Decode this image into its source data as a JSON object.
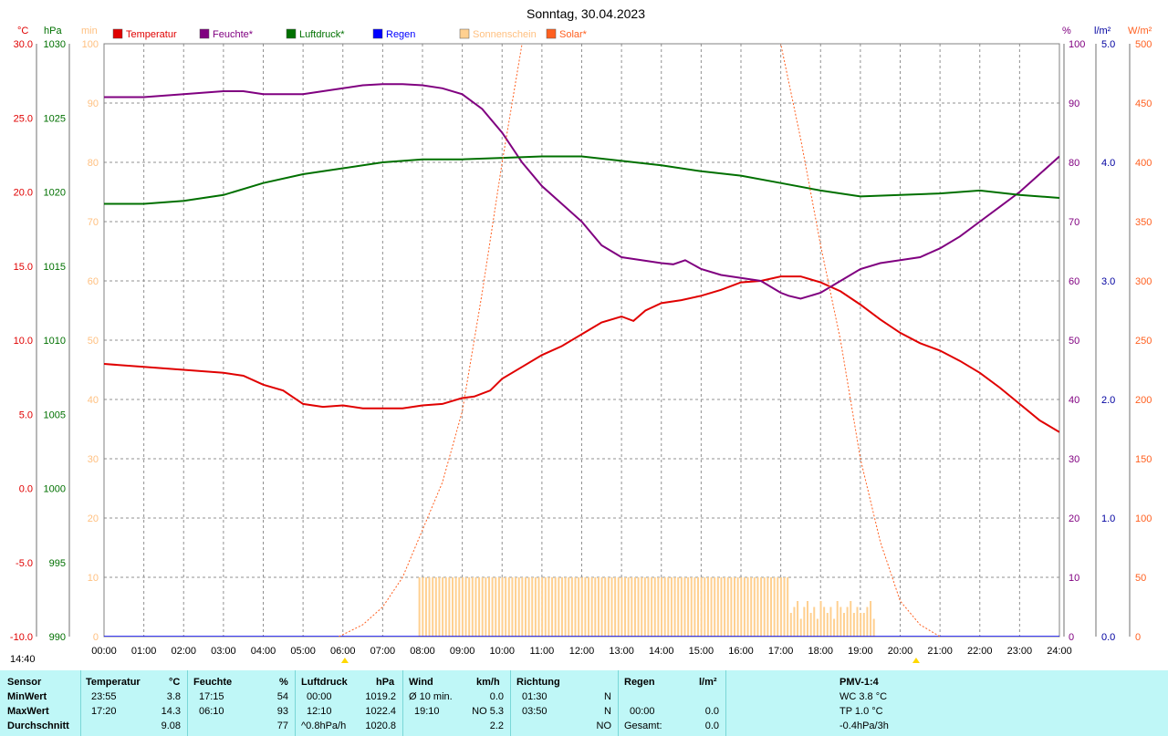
{
  "title": "Sonntag, 30.04.2023",
  "time_label": "14:40",
  "legend": [
    {
      "label": "Temperatur",
      "color": "#e00000"
    },
    {
      "label": "Feuchte*",
      "color": "#800080"
    },
    {
      "label": "Luftdruck*",
      "color": "#007000"
    },
    {
      "label": "Regen",
      "color": "#0000ff"
    },
    {
      "label": "Sonnenschein",
      "color": "#ffd090"
    },
    {
      "label": "Solar*",
      "color": "#ff6020"
    }
  ],
  "units": {
    "temp": "°C",
    "press": "hPa",
    "sun": "min",
    "hum": "%",
    "rain": "l/m²",
    "solar": "W/m²"
  },
  "chart_data": {
    "type": "line",
    "title": "Sonntag, 30.04.2023",
    "x_ticks": [
      "00:00",
      "01:00",
      "02:00",
      "03:00",
      "04:00",
      "05:00",
      "06:00",
      "07:00",
      "08:00",
      "09:00",
      "10:00",
      "11:00",
      "12:00",
      "13:00",
      "14:00",
      "15:00",
      "16:00",
      "17:00",
      "18:00",
      "19:00",
      "20:00",
      "21:00",
      "22:00",
      "23:00",
      "24:00"
    ],
    "axes": {
      "temp": {
        "ticks": [
          "30.0",
          "25.0",
          "20.0",
          "15.0",
          "10.0",
          "5.0",
          "0.0",
          "-5.0",
          "-10.0"
        ],
        "range": [
          -10,
          30
        ]
      },
      "press": {
        "ticks": [
          "1030",
          "1025",
          "1020",
          "1015",
          "1010",
          "1005",
          "1000",
          "995",
          "990"
        ],
        "range": [
          990,
          1030
        ]
      },
      "sun": {
        "ticks": [
          "100",
          "90",
          "80",
          "70",
          "60",
          "50",
          "40",
          "30",
          "20",
          "10",
          "0"
        ],
        "range": [
          0,
          100
        ]
      },
      "hum": {
        "ticks": [
          "100",
          "90",
          "80",
          "70",
          "60",
          "50",
          "40",
          "30",
          "20",
          "10",
          "0"
        ],
        "range": [
          0,
          100
        ]
      },
      "rain": {
        "ticks": [
          "5.0",
          "4.0",
          "3.0",
          "2.0",
          "1.0",
          "0.0"
        ],
        "range": [
          0,
          5
        ]
      },
      "solar": {
        "ticks": [
          "500",
          "450",
          "400",
          "350",
          "300",
          "250",
          "200",
          "150",
          "100",
          "50",
          "0"
        ],
        "range": [
          0,
          500
        ]
      }
    },
    "series": [
      {
        "name": "Temperatur",
        "axis": "temp",
        "color": "#e00000",
        "x": [
          0,
          1,
          2,
          3,
          3.5,
          4,
          4.5,
          5,
          5.5,
          6,
          6.5,
          7,
          7.5,
          8,
          8.5,
          9,
          9.3,
          9.7,
          10,
          10.5,
          11,
          11.5,
          12,
          12.5,
          13,
          13.3,
          13.6,
          14,
          14.5,
          15,
          15.5,
          16,
          16.5,
          17,
          17.5,
          18,
          18.5,
          19,
          19.5,
          20,
          20.5,
          21,
          21.5,
          22,
          22.5,
          23,
          23.5,
          24
        ],
        "y": [
          8.4,
          8.2,
          8.0,
          7.8,
          7.6,
          7.0,
          6.6,
          5.7,
          5.5,
          5.6,
          5.4,
          5.4,
          5.4,
          5.6,
          5.7,
          6.1,
          6.2,
          6.6,
          7.4,
          8.2,
          9.0,
          9.6,
          10.4,
          11.2,
          11.6,
          11.3,
          12.0,
          12.5,
          12.7,
          13.0,
          13.4,
          13.9,
          14.0,
          14.3,
          14.3,
          13.9,
          13.3,
          12.4,
          11.4,
          10.5,
          9.8,
          9.3,
          8.6,
          7.8,
          6.8,
          5.7,
          4.6,
          3.8
        ]
      },
      {
        "name": "Feuchte*",
        "axis": "hum",
        "color": "#800080",
        "x": [
          0,
          1,
          2,
          3,
          3.5,
          4,
          5,
          5.5,
          6,
          6.5,
          7,
          7.5,
          8,
          8.5,
          9,
          9.5,
          10,
          10.5,
          11,
          11.5,
          12,
          12.5,
          13,
          13.5,
          14,
          14.3,
          14.6,
          15,
          15.5,
          16,
          16.5,
          17,
          17.2,
          17.5,
          18,
          18.5,
          19,
          19.5,
          20,
          20.5,
          21,
          21.5,
          22,
          22.5,
          23,
          23.5,
          24
        ],
        "y": [
          91,
          91,
          91.5,
          92,
          92,
          91.5,
          91.5,
          92,
          92.5,
          93,
          93.2,
          93.2,
          93,
          92.5,
          91.5,
          89,
          85,
          80,
          76,
          73,
          70,
          66,
          64,
          63.5,
          63,
          62.8,
          63.5,
          62,
          61,
          60.5,
          60,
          58,
          57.5,
          57,
          58,
          60,
          62,
          63,
          63.5,
          64,
          65.5,
          67.5,
          70,
          72.5,
          75,
          78,
          81
        ]
      },
      {
        "name": "Luftdruck*",
        "axis": "press",
        "color": "#007000",
        "x": [
          0,
          1,
          2,
          3,
          4,
          5,
          6,
          7,
          8,
          9,
          10,
          11,
          12,
          13,
          14,
          15,
          16,
          17,
          18,
          19,
          20,
          21,
          22,
          23,
          24
        ],
        "y": [
          1019.2,
          1019.2,
          1019.4,
          1019.8,
          1020.6,
          1021.2,
          1021.6,
          1022.0,
          1022.2,
          1022.2,
          1022.3,
          1022.4,
          1022.4,
          1022.1,
          1021.8,
          1021.4,
          1021.1,
          1020.6,
          1020.1,
          1019.7,
          1019.8,
          1019.9,
          1020.1,
          1019.8,
          1019.6
        ]
      },
      {
        "name": "Regen",
        "axis": "rain",
        "color": "#0000ff",
        "x": [
          0,
          24
        ],
        "y": [
          0,
          0
        ]
      },
      {
        "name": "Solar*",
        "axis": "solar",
        "color": "#ff6020",
        "x": [
          5.9,
          6.5,
          7,
          7.5,
          8,
          8.5,
          9,
          9.5,
          10,
          10.5,
          11,
          16.5,
          17,
          17.5,
          18,
          18.5,
          19,
          19.5,
          20,
          20.5,
          21
        ],
        "y": [
          0,
          10,
          25,
          50,
          90,
          130,
          190,
          290,
          400,
          500,
          560,
          560,
          500,
          420,
          330,
          250,
          150,
          80,
          30,
          10,
          0
        ]
      },
      {
        "name": "Sonnenschein",
        "axis": "sun",
        "color": "#ffd090",
        "type": "bar",
        "x_start": 7.9,
        "x_end": 19.4,
        "full_until": 17.2,
        "value_full": 10,
        "value_partial": [
          4,
          5,
          6,
          3,
          5,
          6,
          4,
          5,
          3,
          6,
          5,
          4,
          5,
          3,
          6,
          5,
          4,
          5,
          6,
          4,
          5,
          4
        ]
      }
    ]
  },
  "table": {
    "headers": {
      "sensor": "Sensor",
      "temp": "Temperatur",
      "temp_unit": "°C",
      "hum": "Feuchte",
      "hum_unit": "%",
      "press": "Luftdruck",
      "press_unit": "hPa",
      "wind": "Wind",
      "wind_unit": "km/h",
      "dir": "Richtung",
      "rain": "Regen",
      "rain_unit": "l/m²",
      "pmv": "PMV-1:4"
    },
    "rows": [
      {
        "label": "MinWert",
        "temp_time": "23:55",
        "temp_val": "3.8",
        "hum_time": "17:15",
        "hum_val": "54",
        "press_time": "00:00",
        "press_val": "1019.2",
        "wind_a": "Ø 10 min.",
        "wind_val": "0.0",
        "dir_time": "01:30",
        "dir_val": "N",
        "rain_time": "",
        "rain_val": "",
        "pmv": "WC 3.8 °C"
      },
      {
        "label": "MaxWert",
        "temp_time": "17:20",
        "temp_val": "14.3",
        "hum_time": "06:10",
        "hum_val": "93",
        "press_time": "12:10",
        "press_val": "1022.4",
        "wind_a": "19:10",
        "wind_val": "NO 5.3",
        "dir_time": "03:50",
        "dir_val": "N",
        "rain_time": "00:00",
        "rain_val": "0.0",
        "pmv": "TP 1.0 °C"
      },
      {
        "label": "Durchschnitt",
        "temp_time": "",
        "temp_val": "9.08",
        "hum_time": "",
        "hum_val": "77",
        "press_time": "^0.8hPa/h",
        "press_val": "1020.8",
        "wind_a": "",
        "wind_val": "2.2",
        "dir_time": "",
        "dir_val": "NO",
        "rain_time": "Gesamt:",
        "rain_val": "0.0",
        "pmv": "-0.4hPa/3h"
      }
    ]
  }
}
